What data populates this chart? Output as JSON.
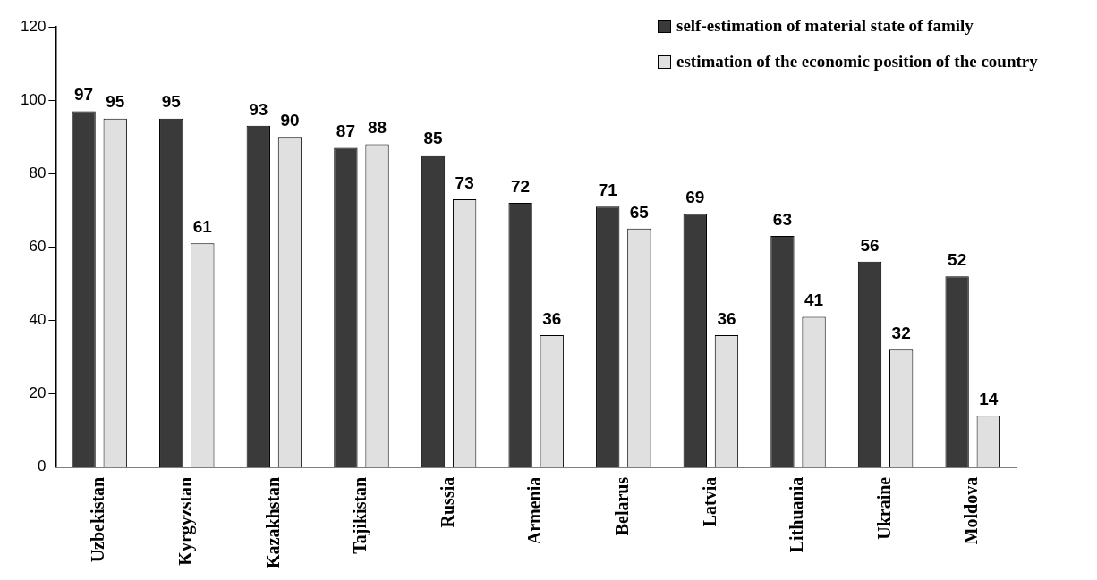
{
  "chart_data": {
    "type": "bar",
    "categories": [
      "Uzbekistan",
      "Kyrgyzstan",
      "Kazakhstan",
      "Tajikistan",
      "Russia",
      "Armenia",
      "Belarus",
      "Latvia",
      "Lithuania",
      "Ukraine",
      "Moldova"
    ],
    "series": [
      {
        "name": "self-estimation of material state of family",
        "color": "#3a3a3a",
        "values": [
          97,
          95,
          93,
          87,
          85,
          72,
          71,
          69,
          63,
          56,
          52
        ]
      },
      {
        "name": "estimation of the economic position of the country",
        "color": "#e0e0e0",
        "values": [
          95,
          61,
          90,
          88,
          73,
          36,
          65,
          36,
          41,
          32,
          14
        ]
      }
    ],
    "ylim": [
      0,
      120
    ],
    "yticks": [
      0,
      20,
      40,
      60,
      80,
      100,
      120
    ],
    "grid": false,
    "legend": "top right",
    "data_labels": true
  }
}
